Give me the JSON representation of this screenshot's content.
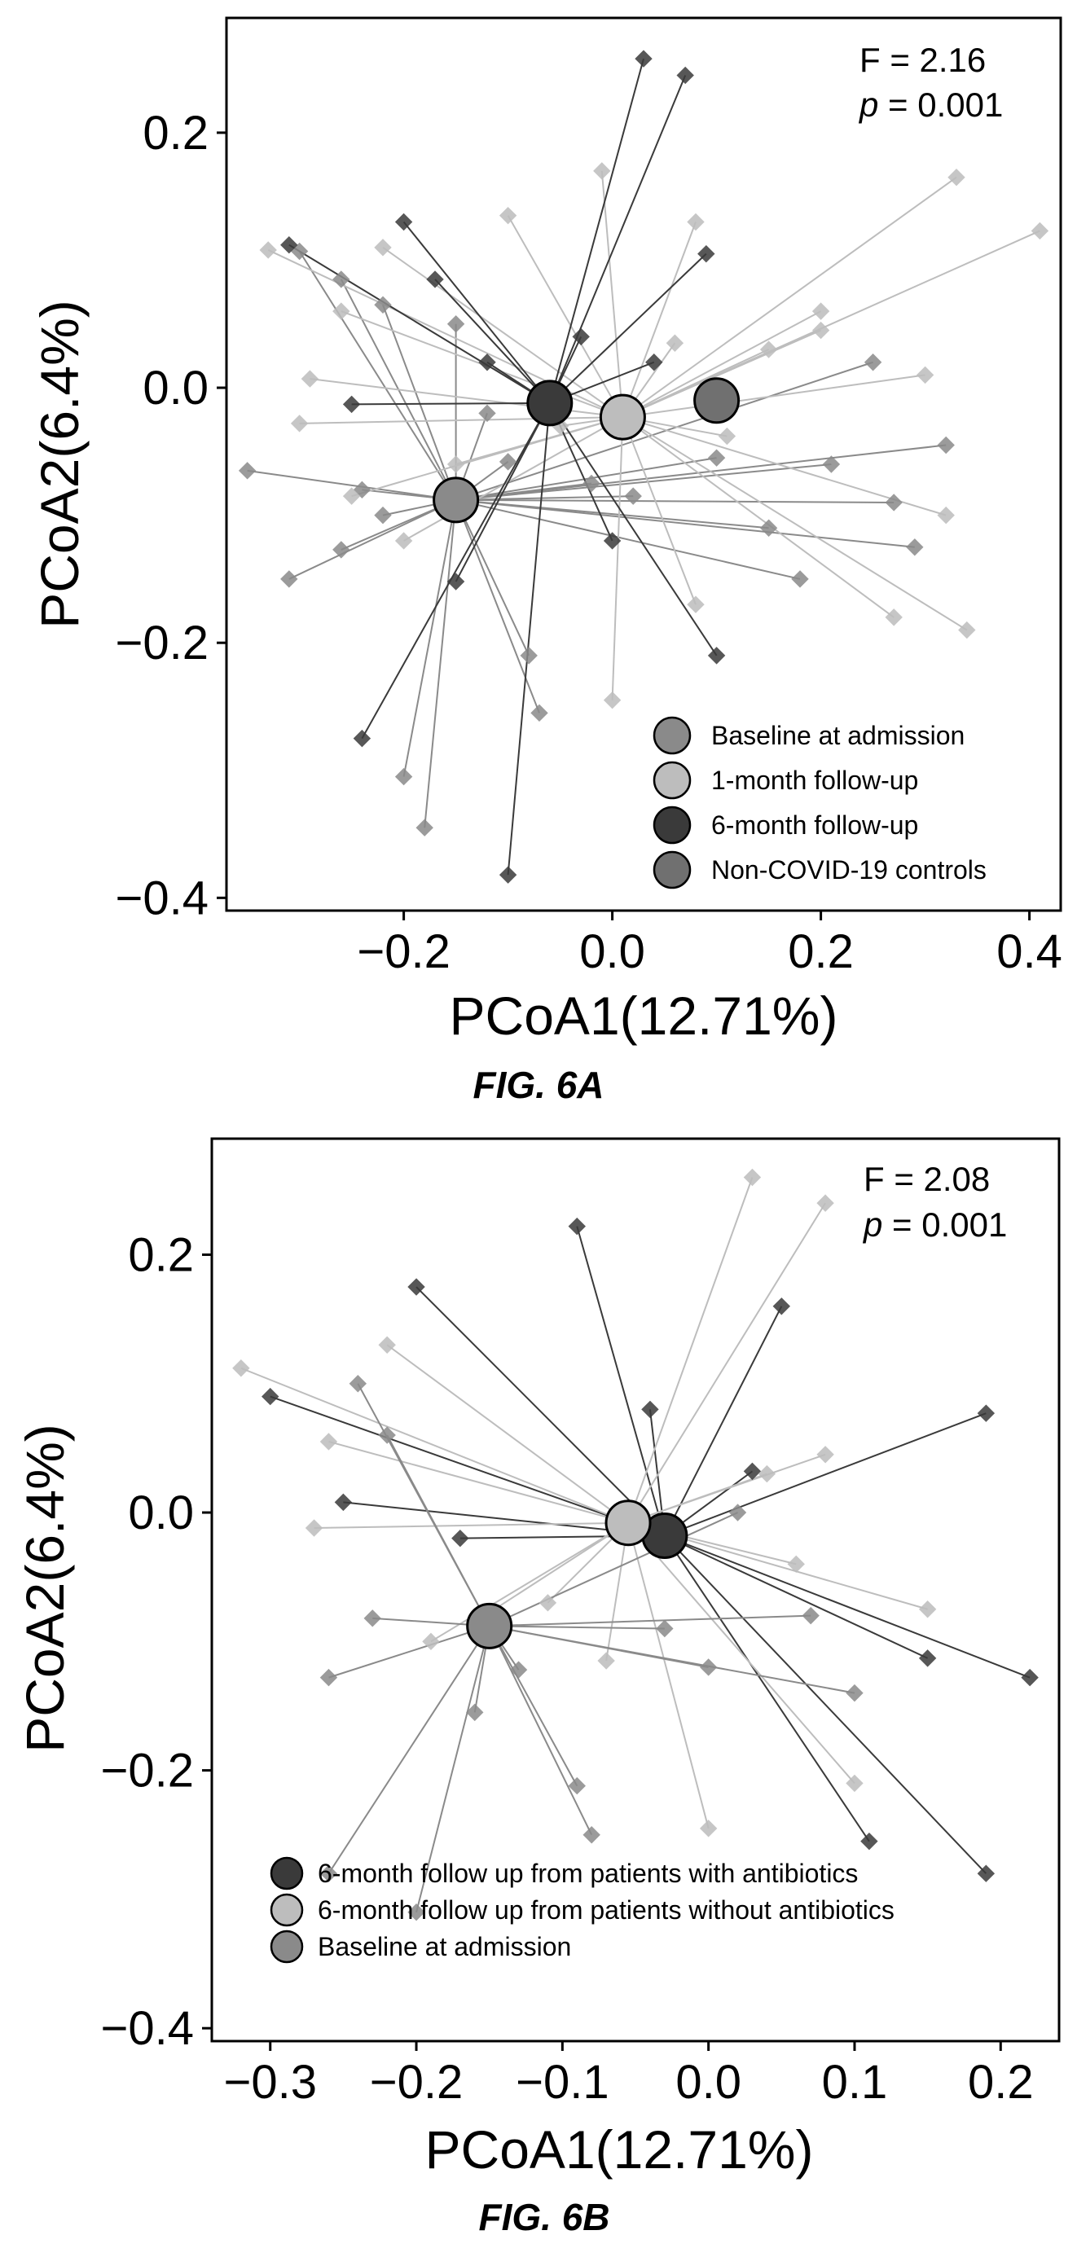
{
  "chart_data": [
    {
      "type": "scatter",
      "caption": "FIG. 6A",
      "xlabel": "PCoA1(12.71%)",
      "ylabel": "PCoA2(6.4%)",
      "xlim": [
        -0.37,
        0.43
      ],
      "ylim": [
        -0.41,
        0.29
      ],
      "xticks": [
        "-0.2",
        "0.0",
        "0.2",
        "0.4"
      ],
      "yticks": [
        "0.2",
        "0.0",
        "-0.2",
        "-0.4"
      ],
      "annotation": {
        "f": "F = 2.16",
        "p_label": "p",
        "p_value": " = 0.001"
      },
      "grid": false,
      "legend_position": "bottom-right",
      "series": [
        {
          "name": "Baseline at admission",
          "color": "#8a8a8a",
          "centroid": [
            -0.15,
            -0.088
          ],
          "points": [
            [
              -0.35,
              -0.065
            ],
            [
              -0.31,
              -0.15
            ],
            [
              -0.26,
              -0.127
            ],
            [
              -0.24,
              -0.08
            ],
            [
              -0.22,
              -0.1
            ],
            [
              -0.2,
              -0.305
            ],
            [
              -0.18,
              -0.345
            ],
            [
              -0.3,
              0.107
            ],
            [
              -0.26,
              0.085
            ],
            [
              -0.22,
              0.065
            ],
            [
              -0.15,
              0.05
            ],
            [
              -0.12,
              -0.02
            ],
            [
              -0.1,
              -0.058
            ],
            [
              -0.08,
              -0.21
            ],
            [
              -0.07,
              -0.255
            ],
            [
              -0.02,
              -0.075
            ],
            [
              0.02,
              -0.085
            ],
            [
              0.1,
              -0.055
            ],
            [
              0.15,
              -0.11
            ],
            [
              0.18,
              -0.15
            ],
            [
              0.21,
              -0.06
            ],
            [
              0.27,
              -0.09
            ],
            [
              0.29,
              -0.125
            ],
            [
              0.32,
              -0.045
            ],
            [
              0.25,
              0.02
            ]
          ]
        },
        {
          "name": "1-month follow-up",
          "color": "#bdbdbd",
          "centroid": [
            0.01,
            -0.023
          ],
          "points": [
            [
              -0.33,
              0.108
            ],
            [
              -0.29,
              0.007
            ],
            [
              -0.26,
              0.06
            ],
            [
              -0.22,
              0.11
            ],
            [
              -0.25,
              -0.085
            ],
            [
              -0.1,
              0.135
            ],
            [
              -0.15,
              -0.06
            ],
            [
              -0.05,
              -0.03
            ],
            [
              -0.01,
              0.17
            ],
            [
              0.0,
              -0.245
            ],
            [
              0.06,
              0.035
            ],
            [
              0.08,
              0.13
            ],
            [
              0.08,
              -0.17
            ],
            [
              0.11,
              -0.038
            ],
            [
              0.15,
              0.03
            ],
            [
              0.2,
              0.06
            ],
            [
              0.2,
              0.045
            ],
            [
              0.27,
              -0.18
            ],
            [
              0.3,
              0.01
            ],
            [
              0.33,
              0.165
            ],
            [
              0.34,
              -0.19
            ],
            [
              0.41,
              0.123
            ],
            [
              0.32,
              -0.1
            ],
            [
              -0.3,
              -0.028
            ],
            [
              -0.2,
              -0.12
            ]
          ]
        },
        {
          "name": "6-month follow-up",
          "color": "#3a3a3a",
          "centroid": [
            -0.06,
            -0.012
          ],
          "points": [
            [
              -0.31,
              0.112
            ],
            [
              -0.25,
              -0.013
            ],
            [
              -0.24,
              -0.275
            ],
            [
              -0.2,
              0.13
            ],
            [
              -0.17,
              0.085
            ],
            [
              -0.15,
              -0.152
            ],
            [
              -0.1,
              -0.382
            ],
            [
              -0.03,
              0.04
            ],
            [
              0.0,
              -0.12
            ],
            [
              0.03,
              0.258
            ],
            [
              0.07,
              0.245
            ],
            [
              0.09,
              0.105
            ],
            [
              0.1,
              -0.21
            ],
            [
              0.04,
              0.02
            ],
            [
              -0.12,
              0.02
            ]
          ]
        },
        {
          "name": "Non-COVID-19 controls",
          "color": "#707070",
          "centroid": [
            0.1,
            -0.01
          ],
          "points": []
        }
      ]
    },
    {
      "type": "scatter",
      "caption": "FIG. 6B",
      "xlabel": "PCoA1(12.71%)",
      "ylabel": "PCoA2(6.4%)",
      "xlim": [
        -0.34,
        0.24
      ],
      "ylim": [
        -0.41,
        0.29
      ],
      "xticks": [
        "-0.3",
        "-0.2",
        "-0.1",
        "0.0",
        "0.1",
        "0.2"
      ],
      "yticks": [
        "0.2",
        "0.0",
        "-0.2",
        "-0.4"
      ],
      "annotation": {
        "f": "F = 2.08",
        "p_label": "p",
        "p_value": " = 0.001"
      },
      "grid": false,
      "legend_position": "bottom-left",
      "series": [
        {
          "name": "6-month follow up from patients with antibiotics",
          "color": "#3a3a3a",
          "centroid": [
            -0.03,
            -0.018
          ],
          "points": [
            [
              -0.3,
              0.09
            ],
            [
              -0.25,
              0.008
            ],
            [
              -0.2,
              0.175
            ],
            [
              -0.17,
              -0.02
            ],
            [
              -0.09,
              0.222
            ],
            [
              -0.04,
              0.08
            ],
            [
              0.03,
              0.032
            ],
            [
              0.05,
              0.16
            ],
            [
              0.11,
              -0.255
            ],
            [
              0.15,
              -0.113
            ],
            [
              0.19,
              0.077
            ],
            [
              0.19,
              -0.28
            ],
            [
              0.22,
              -0.128
            ]
          ]
        },
        {
          "name": "6-month follow up from patients without antibiotics",
          "color": "#bdbdbd",
          "centroid": [
            -0.055,
            -0.008
          ],
          "points": [
            [
              -0.32,
              0.112
            ],
            [
              -0.27,
              -0.012
            ],
            [
              -0.26,
              0.055
            ],
            [
              -0.22,
              0.13
            ],
            [
              -0.19,
              -0.1
            ],
            [
              -0.16,
              -0.085
            ],
            [
              -0.11,
              -0.07
            ],
            [
              -0.07,
              -0.115
            ],
            [
              0.0,
              -0.245
            ],
            [
              0.03,
              0.26
            ],
            [
              0.04,
              0.03
            ],
            [
              0.08,
              0.24
            ],
            [
              0.08,
              0.045
            ],
            [
              0.1,
              -0.21
            ],
            [
              0.15,
              -0.075
            ],
            [
              0.06,
              -0.04
            ]
          ]
        },
        {
          "name": "Baseline at admission",
          "color": "#8a8a8a",
          "centroid": [
            -0.15,
            -0.088
          ],
          "points": [
            [
              -0.26,
              -0.128
            ],
            [
              -0.24,
              0.1
            ],
            [
              -0.23,
              -0.082
            ],
            [
              -0.22,
              0.06
            ],
            [
              -0.2,
              -0.31
            ],
            [
              -0.16,
              -0.155
            ],
            [
              -0.13,
              -0.122
            ],
            [
              -0.09,
              -0.212
            ],
            [
              -0.08,
              -0.25
            ],
            [
              -0.03,
              -0.09
            ],
            [
              0.0,
              -0.12
            ],
            [
              0.02,
              0.0
            ],
            [
              0.07,
              -0.08
            ],
            [
              0.1,
              -0.14
            ],
            [
              -0.26,
              -0.28
            ]
          ]
        }
      ]
    }
  ]
}
